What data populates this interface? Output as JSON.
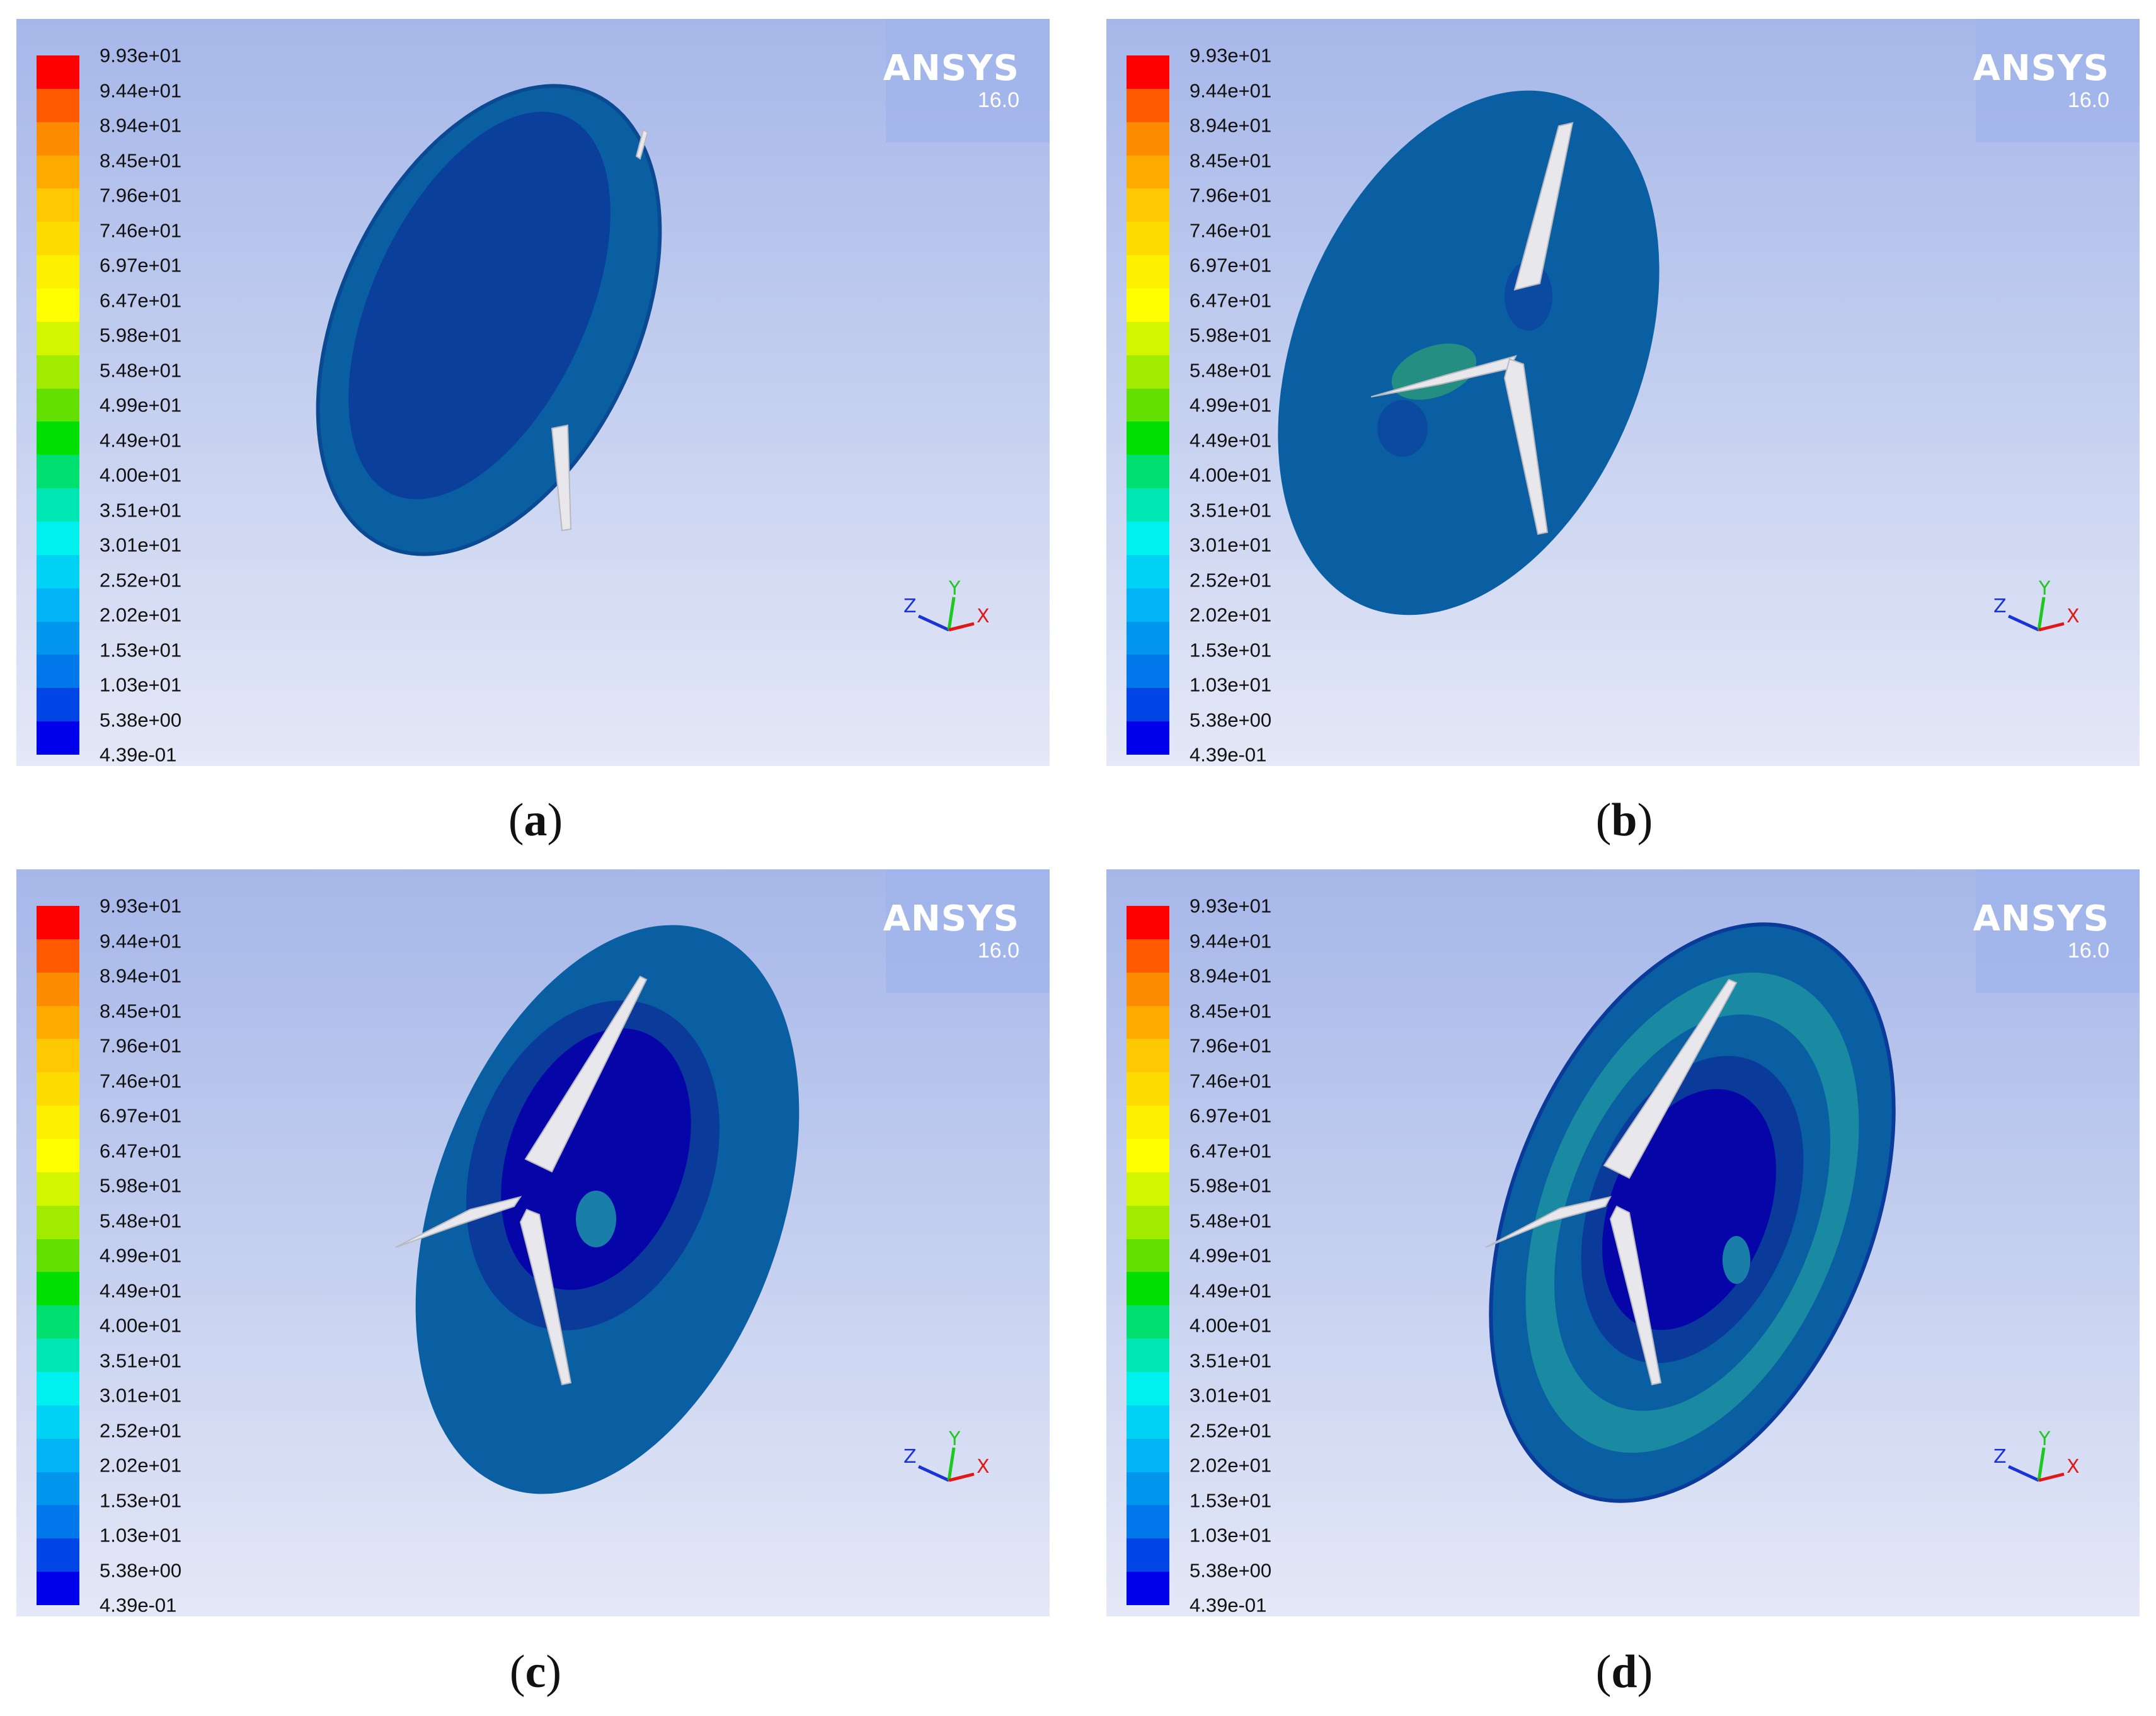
{
  "legend": {
    "labels": [
      "9.93e+01",
      "9.44e+01",
      "8.94e+01",
      "8.45e+01",
      "7.96e+01",
      "7.46e+01",
      "6.97e+01",
      "6.47e+01",
      "5.98e+01",
      "5.48e+01",
      "4.99e+01",
      "4.49e+01",
      "4.00e+01",
      "3.51e+01",
      "3.01e+01",
      "2.52e+01",
      "2.02e+01",
      "1.53e+01",
      "1.03e+01",
      "5.38e+00",
      "4.39e-01"
    ],
    "colors": [
      "#ff0000",
      "#ff5a00",
      "#ff8c00",
      "#ffaa00",
      "#ffc800",
      "#ffdc00",
      "#fff000",
      "#ffff00",
      "#d2f500",
      "#a0eb00",
      "#64e000",
      "#00e000",
      "#00e070",
      "#00e6b4",
      "#00f0f0",
      "#00d2f5",
      "#00b4f5",
      "#0096f0",
      "#0078eb",
      "#0046e6",
      "#0000eb"
    ]
  },
  "brand": {
    "name": "ANSYS",
    "version": "16.0"
  },
  "axes": {
    "x": "X",
    "y": "Y",
    "z": "Z"
  },
  "panels": [
    {
      "caption": "a"
    },
    {
      "caption": "b"
    },
    {
      "caption": "c"
    },
    {
      "caption": "d"
    }
  ],
  "colors": {
    "surface_light": "#0a5fa3",
    "surface_dark": "#0a3b9a",
    "surface_deep": "#0505a8",
    "surface_ring": "#1588a0",
    "blade": "#e8e8ec"
  }
}
